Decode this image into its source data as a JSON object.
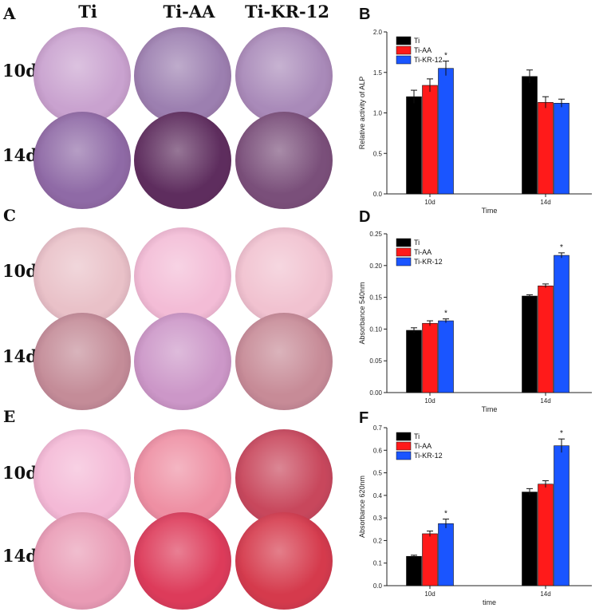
{
  "photo_panels": {
    "column_labels": [
      "Ti",
      "Ti-AA",
      "Ti-KR-12"
    ],
    "row_labels": [
      "10d",
      "14d"
    ],
    "panels": [
      {
        "letter": "A",
        "stain_colors": [
          [
            "#c9a2cf",
            "#9c7fb0",
            "#a98ab9"
          ],
          [
            "#8f6aa6",
            "#5e2d5e",
            "#7a4f7a"
          ]
        ]
      },
      {
        "letter": "C",
        "stain_colors": [
          [
            "#e9c1c8",
            "#f3bcd6",
            "#f1c2d0"
          ],
          [
            "#c48c98",
            "#cc97c8",
            "#c78b97"
          ]
        ]
      },
      {
        "letter": "E",
        "stain_colors": [
          [
            "#f4b9d6",
            "#ee8fa3",
            "#c8475c"
          ],
          [
            "#e99bb5",
            "#dd3b5a",
            "#d53a4c"
          ]
        ]
      }
    ]
  },
  "legend": [
    {
      "name": "Ti",
      "color": "#000000"
    },
    {
      "name": "Ti-AA",
      "color": "#ff1a1a"
    },
    {
      "name": "Ti-KR-12",
      "color": "#1a55ff"
    }
  ],
  "chart_data": [
    {
      "letter": "B",
      "type": "bar",
      "categories": [
        "10d",
        "14d"
      ],
      "xlabel": "Time",
      "ylabel": "Relative activity of ALP",
      "ylim": [
        0,
        2.0
      ],
      "yticks": [
        "0.0",
        "0.5",
        "1.0",
        "1.5",
        "2.0"
      ],
      "series": [
        {
          "name": "Ti",
          "values": [
            1.2,
            1.45
          ],
          "errors": [
            0.08,
            0.08
          ]
        },
        {
          "name": "Ti-AA",
          "values": [
            1.34,
            1.13
          ],
          "errors": [
            0.08,
            0.07
          ]
        },
        {
          "name": "Ti-KR-12",
          "values": [
            1.55,
            1.12
          ],
          "errors": [
            0.09,
            0.05
          ]
        }
      ],
      "significance": [
        {
          "category": "10d",
          "series": "Ti-KR-12",
          "mark": "*"
        }
      ]
    },
    {
      "letter": "D",
      "type": "bar",
      "categories": [
        "10d",
        "14d"
      ],
      "xlabel": "Time",
      "ylabel": "Absorbance 540nm",
      "ylim": [
        0,
        0.25
      ],
      "yticks": [
        "0.00",
        "0.05",
        "0.10",
        "0.15",
        "0.20",
        "0.25"
      ],
      "series": [
        {
          "name": "Ti",
          "values": [
            0.098,
            0.152
          ],
          "errors": [
            0.004,
            0.002
          ]
        },
        {
          "name": "Ti-AA",
          "values": [
            0.109,
            0.168
          ],
          "errors": [
            0.004,
            0.003
          ]
        },
        {
          "name": "Ti-KR-12",
          "values": [
            0.113,
            0.216
          ],
          "errors": [
            0.003,
            0.004
          ]
        }
      ],
      "significance": [
        {
          "category": "10d",
          "series": "Ti-KR-12",
          "mark": "*"
        },
        {
          "category": "14d",
          "series": "Ti-KR-12",
          "mark": "*"
        }
      ]
    },
    {
      "letter": "F",
      "type": "bar",
      "categories": [
        "10d",
        "14d"
      ],
      "xlabel": "time",
      "ylabel": "Absorbance 620nm",
      "ylim": [
        0,
        0.7
      ],
      "yticks": [
        "0.0",
        "0.1",
        "0.2",
        "0.3",
        "0.4",
        "0.5",
        "0.6",
        "0.7"
      ],
      "series": [
        {
          "name": "Ti",
          "values": [
            0.13,
            0.415
          ],
          "errors": [
            0.005,
            0.015
          ]
        },
        {
          "name": "Ti-AA",
          "values": [
            0.23,
            0.45
          ],
          "errors": [
            0.012,
            0.015
          ]
        },
        {
          "name": "Ti-KR-12",
          "values": [
            0.275,
            0.62
          ],
          "errors": [
            0.02,
            0.03
          ]
        }
      ],
      "significance": [
        {
          "category": "10d",
          "series": "Ti-KR-12",
          "mark": "*"
        },
        {
          "category": "14d",
          "series": "Ti-KR-12",
          "mark": "*"
        }
      ]
    }
  ]
}
